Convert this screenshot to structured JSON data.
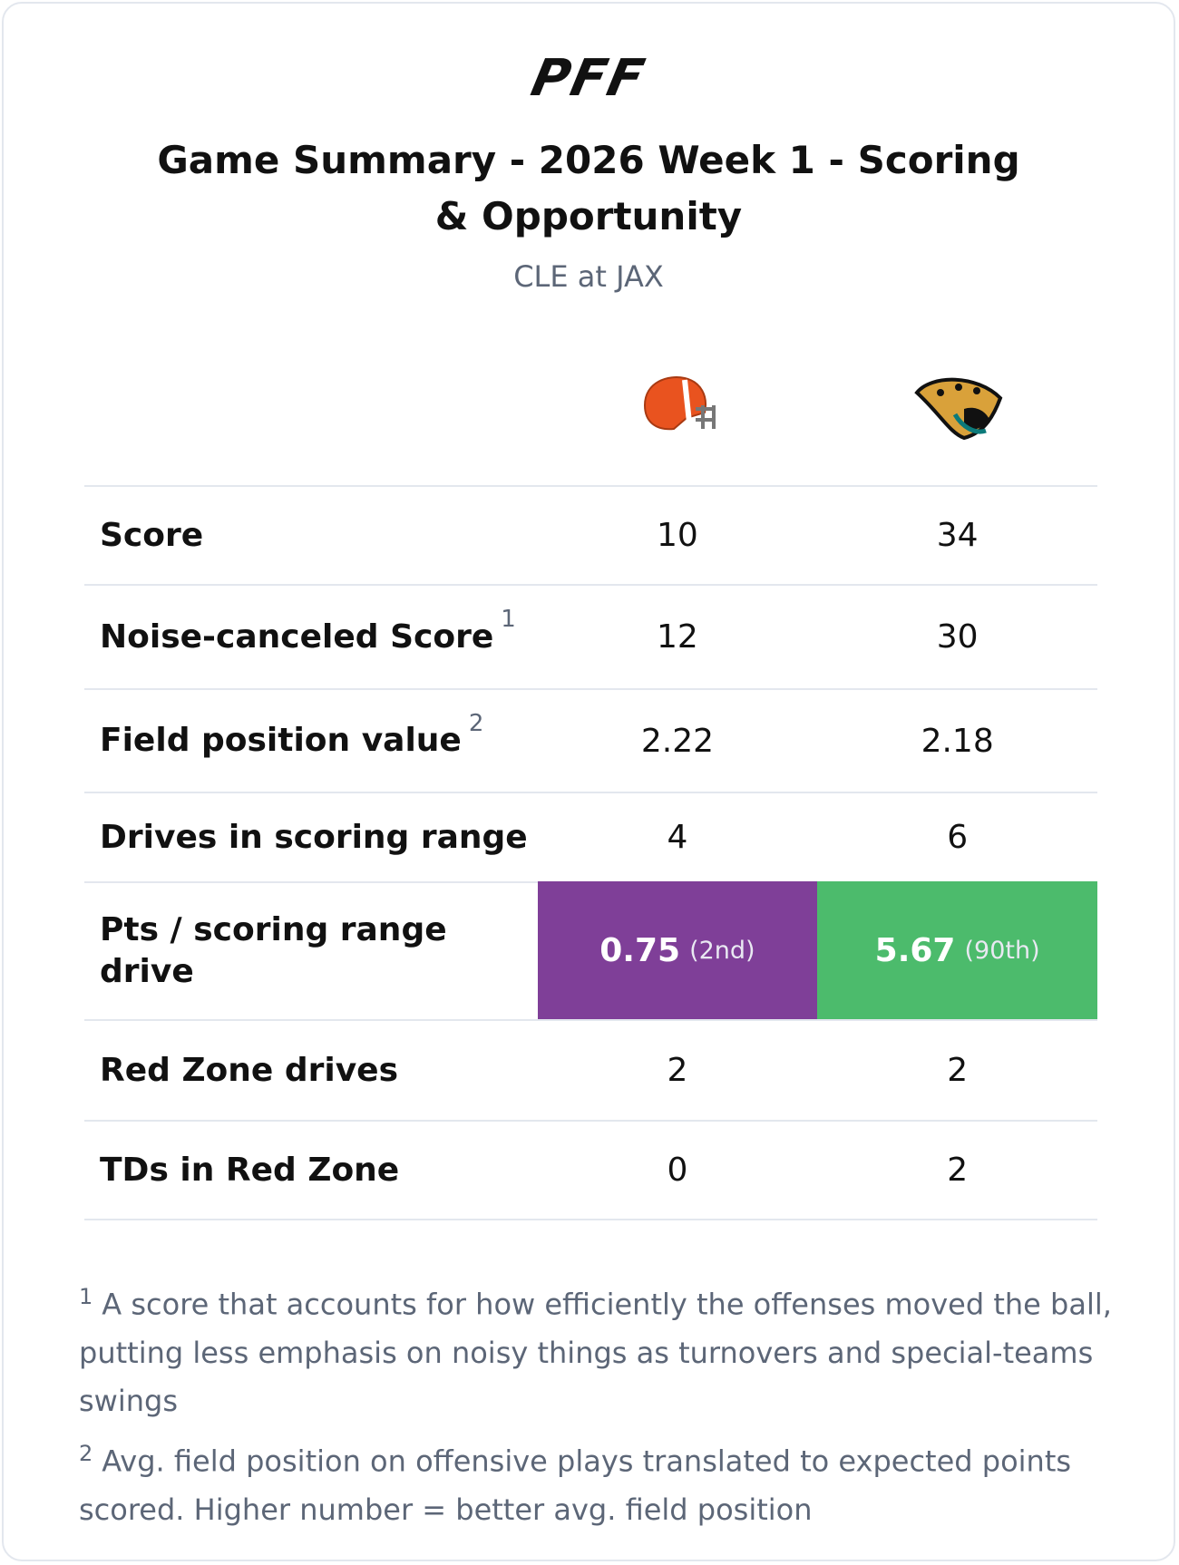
{
  "header": {
    "logo": "PFF",
    "title": "Game Summary - 2026 Week 1 - Scoring & Opportunity",
    "subtitle": "CLE at JAX"
  },
  "table": {
    "rows": [
      {
        "label": "Score",
        "values": [
          "10",
          "34"
        ]
      },
      {
        "label": "Noise-canceled Score",
        "note": "1",
        "values": [
          "12",
          "30"
        ]
      },
      {
        "label": "Field position value",
        "note": "2",
        "values": [
          "2.22",
          "2.18"
        ]
      },
      {
        "label": "Drives in scoring range",
        "values": [
          "4",
          "6"
        ]
      },
      {
        "label": "Pts / scoring range drive",
        "values": [
          "0.75",
          "5.67"
        ],
        "ranks": [
          "(2nd)",
          "(90th)"
        ],
        "colors": [
          "#7f3f98",
          "#4cbb6c"
        ]
      },
      {
        "label": "Red Zone drives",
        "values": [
          "2",
          "2"
        ]
      },
      {
        "label": "TDs in Red Zone",
        "values": [
          "0",
          "2"
        ]
      }
    ]
  },
  "footnotes": [
    {
      "marker": "1",
      "text": "A score that accounts for how efficiently the offenses moved the ball, putting less emphasis on noisy things as turnovers and special-teams swings"
    },
    {
      "marker": "2",
      "text": "Avg. field position on offensive plays translated to expected points scored. Higher number = better avg. field position"
    }
  ]
}
